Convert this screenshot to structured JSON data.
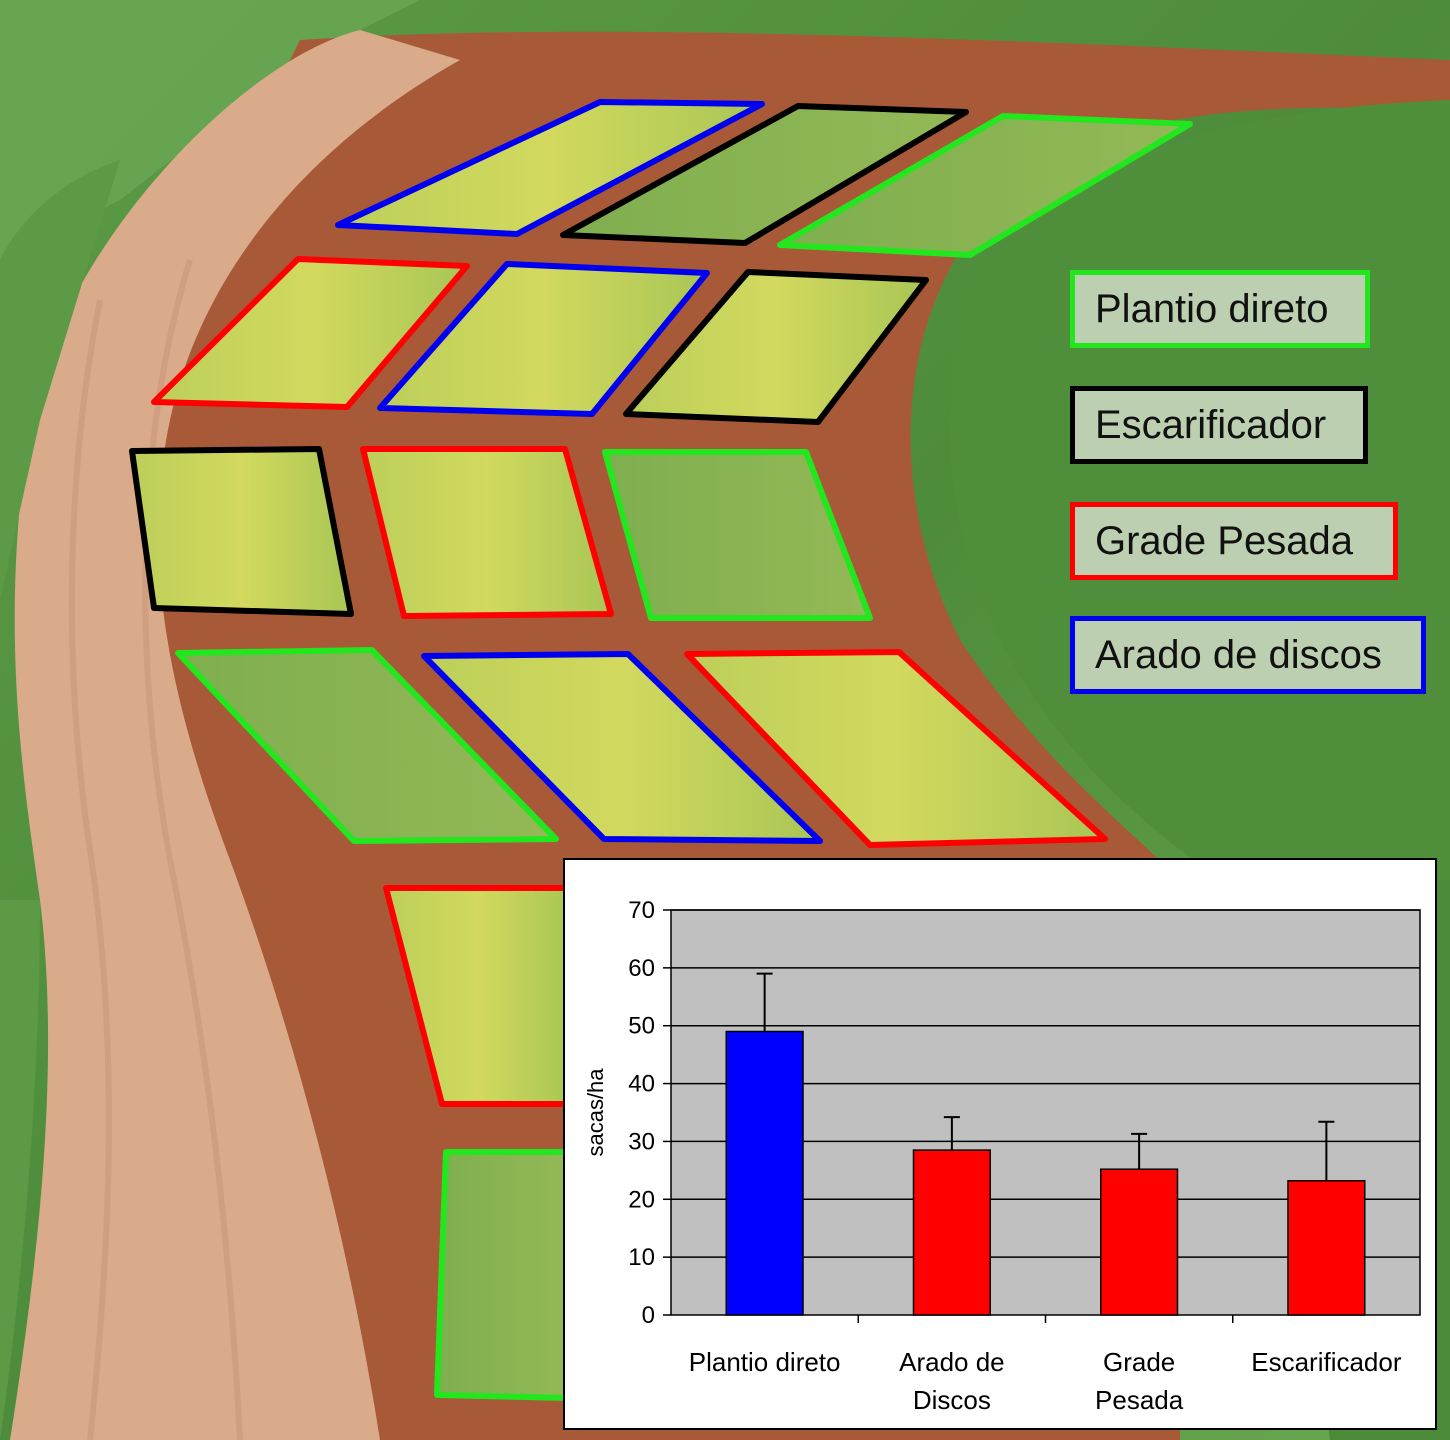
{
  "legend": [
    {
      "label": "Plantio direto",
      "color": "#22e61e"
    },
    {
      "label": "Escarificador",
      "color": "#000000"
    },
    {
      "label": "Grade Pesada",
      "color": "#ff0000"
    },
    {
      "label": "Arado de discos",
      "color": "#0000ee"
    }
  ],
  "chart_data": {
    "type": "bar",
    "title": "",
    "xlabel": "",
    "ylabel": "sacas/ha",
    "ylim": [
      0,
      70
    ],
    "yticks": [
      0,
      10,
      20,
      30,
      40,
      50,
      60,
      70
    ],
    "grid": true,
    "categories": [
      [
        "Plantio direto"
      ],
      [
        "Arado de",
        "Discos"
      ],
      [
        "Grade",
        "Pesada"
      ],
      [
        "Escarificador"
      ]
    ],
    "values": [
      49,
      28.5,
      25.2,
      23.2
    ],
    "error_upper": [
      59,
      34.2,
      31.3,
      33.4
    ],
    "bar_colors": [
      "#0000ff",
      "#ff0000",
      "#ff0000",
      "#ff0000"
    ],
    "plot_background": "#c0c0c0"
  }
}
